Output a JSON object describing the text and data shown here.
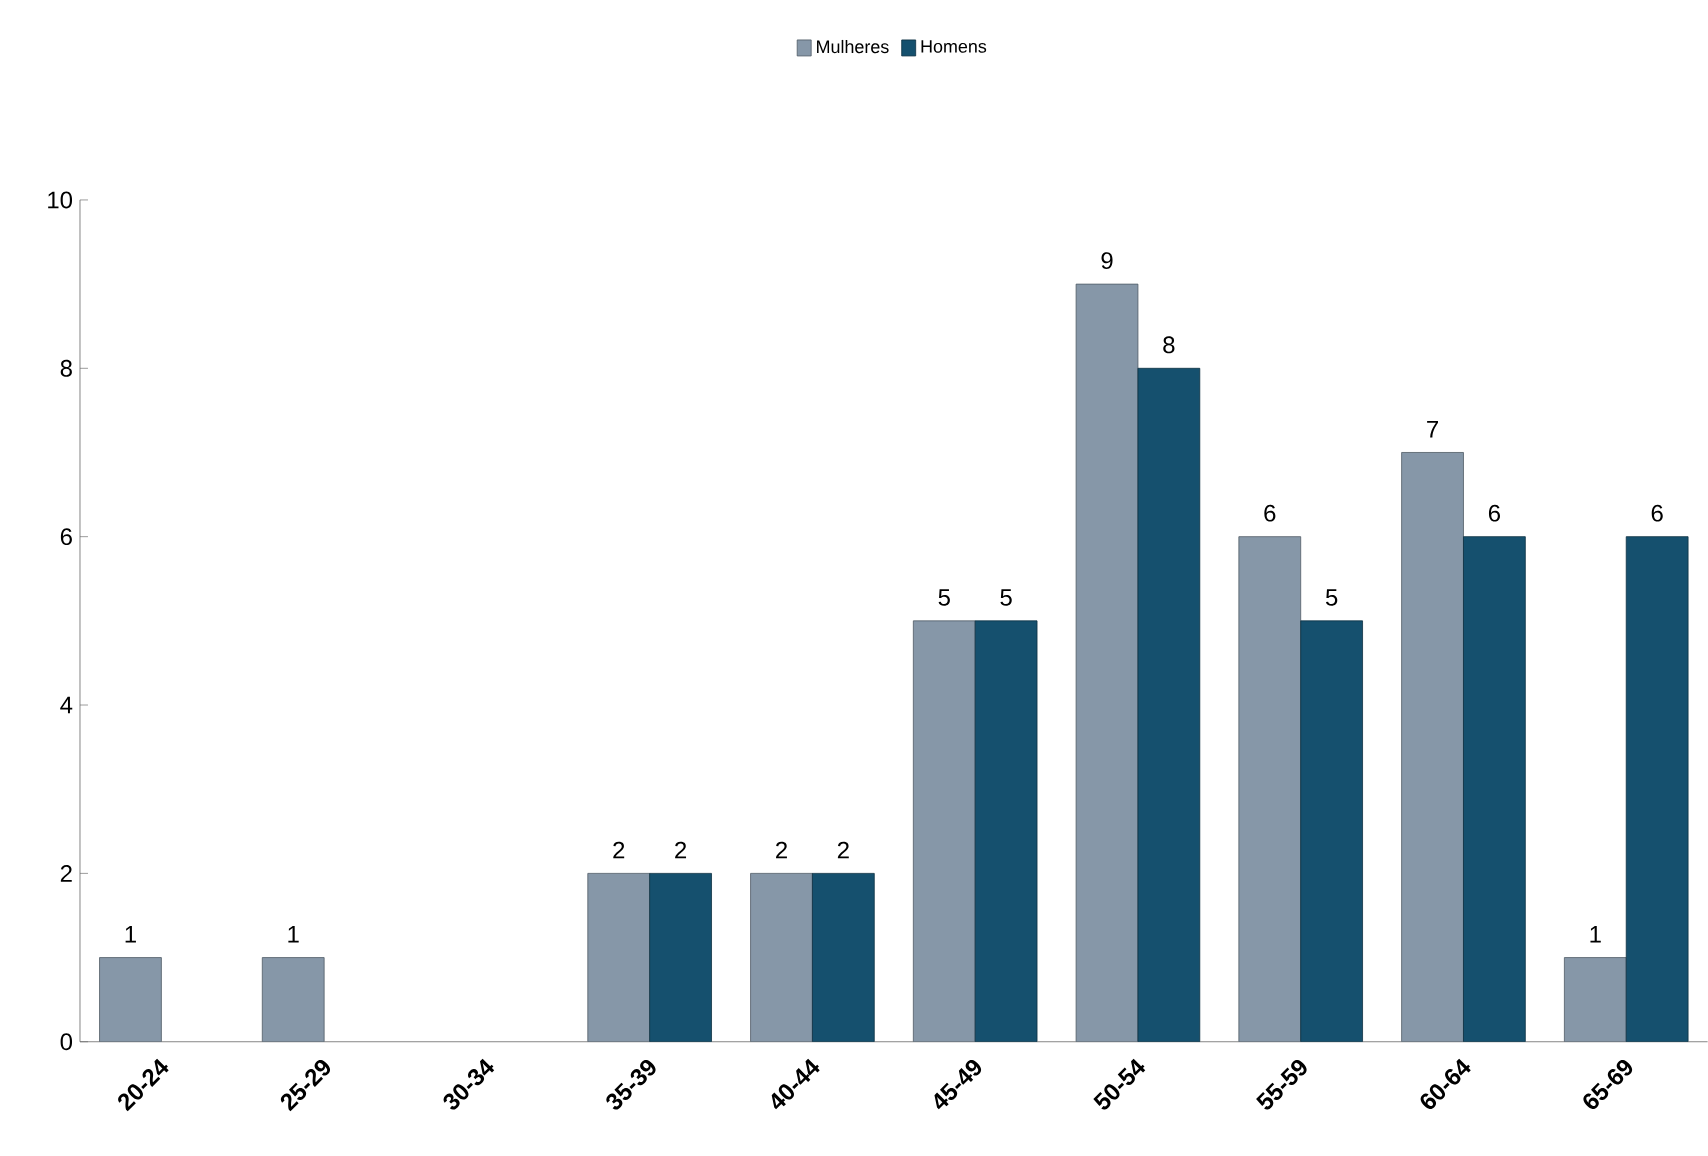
{
  "chart_data": {
    "type": "bar",
    "categories": [
      "20-24",
      "25-29",
      "30-34",
      "35-39",
      "40-44",
      "45-49",
      "50-54",
      "55-59",
      "60-64",
      "65-69"
    ],
    "series": [
      {
        "name": "Mulheres",
        "color": "#8697a8",
        "values": [
          1,
          1,
          null,
          2,
          2,
          5,
          9,
          6,
          7,
          1
        ]
      },
      {
        "name": "Homens",
        "color": "#15506e",
        "values": [
          null,
          null,
          null,
          2,
          2,
          5,
          8,
          5,
          6,
          6
        ]
      }
    ],
    "ylim": [
      0,
      10
    ],
    "yticks": [
      0,
      2,
      4,
      6,
      8,
      10
    ],
    "data_labels": true,
    "legend": "top"
  }
}
